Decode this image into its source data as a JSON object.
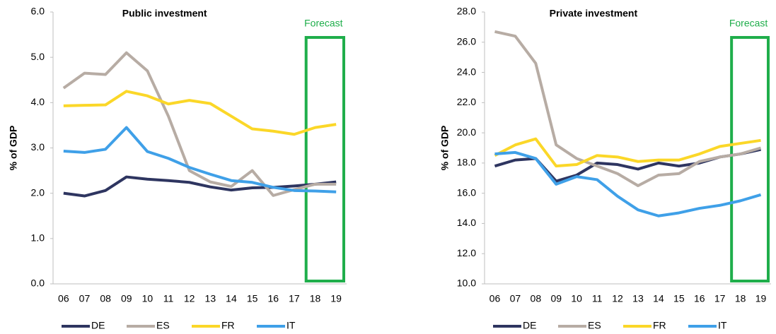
{
  "chart_data": [
    {
      "type": "line",
      "title": "Public investment",
      "y_label": "% of GDP",
      "annotation": "Forecast",
      "categories": [
        "06",
        "07",
        "08",
        "09",
        "10",
        "11",
        "12",
        "13",
        "14",
        "15",
        "16",
        "17",
        "18",
        "19"
      ],
      "ylim": [
        0,
        6
      ],
      "yticks": [
        {
          "value": 0,
          "label": "0.0"
        },
        {
          "value": 1,
          "label": "1.0"
        },
        {
          "value": 2,
          "label": "2.0"
        },
        {
          "value": 3,
          "label": "3.0"
        },
        {
          "value": 4,
          "label": "4.0"
        },
        {
          "value": 5,
          "label": "5.0"
        },
        {
          "value": 6,
          "label": "6.0"
        }
      ],
      "grid": false,
      "series": [
        {
          "name": "DE",
          "color": "#2e3560",
          "values": [
            2.0,
            1.94,
            2.06,
            2.36,
            2.31,
            2.28,
            2.24,
            2.14,
            2.07,
            2.12,
            2.13,
            2.16,
            2.2,
            2.25
          ]
        },
        {
          "name": "ES",
          "color": "#b7aca4",
          "values": [
            4.32,
            4.65,
            4.62,
            5.1,
            4.7,
            3.7,
            2.5,
            2.25,
            2.15,
            2.5,
            1.95,
            2.08,
            2.2,
            2.2
          ]
        },
        {
          "name": "FR",
          "color": "#fbd728",
          "values": [
            3.93,
            3.94,
            3.95,
            4.25,
            4.15,
            3.97,
            4.05,
            3.98,
            3.7,
            3.42,
            3.37,
            3.3,
            3.45,
            3.52
          ]
        },
        {
          "name": "IT",
          "color": "#3fa0e8",
          "values": [
            2.93,
            2.9,
            2.97,
            3.45,
            2.92,
            2.77,
            2.57,
            2.42,
            2.28,
            2.24,
            2.13,
            2.06,
            2.05,
            2.03
          ]
        }
      ]
    },
    {
      "type": "line",
      "title": "Private investment",
      "y_label": "% of GDP",
      "annotation": "Forecast",
      "categories": [
        "06",
        "07",
        "08",
        "09",
        "10",
        "11",
        "12",
        "13",
        "14",
        "15",
        "16",
        "17",
        "18",
        "19"
      ],
      "ylim": [
        10,
        28
      ],
      "yticks": [
        {
          "value": 10,
          "label": "10.0"
        },
        {
          "value": 12,
          "label": "12.0"
        },
        {
          "value": 14,
          "label": "14.0"
        },
        {
          "value": 16,
          "label": "16.0"
        },
        {
          "value": 18,
          "label": "18.0"
        },
        {
          "value": 20,
          "label": "20.0"
        },
        {
          "value": 22,
          "label": "22.0"
        },
        {
          "value": 24,
          "label": "24.0"
        },
        {
          "value": 26,
          "label": "26.0"
        },
        {
          "value": 28,
          "label": "28.0"
        }
      ],
      "grid": false,
      "series": [
        {
          "name": "DE",
          "color": "#2e3560",
          "values": [
            17.8,
            18.2,
            18.3,
            16.8,
            17.2,
            18.0,
            17.9,
            17.6,
            18.0,
            17.8,
            18.0,
            18.4,
            18.6,
            18.9
          ]
        },
        {
          "name": "ES",
          "color": "#b7aca4",
          "values": [
            26.7,
            26.4,
            24.6,
            19.2,
            18.3,
            17.8,
            17.3,
            16.5,
            17.2,
            17.3,
            18.1,
            18.4,
            18.6,
            19.0
          ]
        },
        {
          "name": "FR",
          "color": "#fbd728",
          "values": [
            18.5,
            19.2,
            19.6,
            17.8,
            17.9,
            18.5,
            18.4,
            18.1,
            18.2,
            18.2,
            18.6,
            19.1,
            19.3,
            19.5
          ]
        },
        {
          "name": "IT",
          "color": "#3fa0e8",
          "values": [
            18.6,
            18.7,
            18.3,
            16.6,
            17.1,
            16.9,
            15.8,
            14.9,
            14.5,
            14.7,
            15.0,
            15.2,
            15.5,
            15.9
          ]
        }
      ]
    }
  ]
}
